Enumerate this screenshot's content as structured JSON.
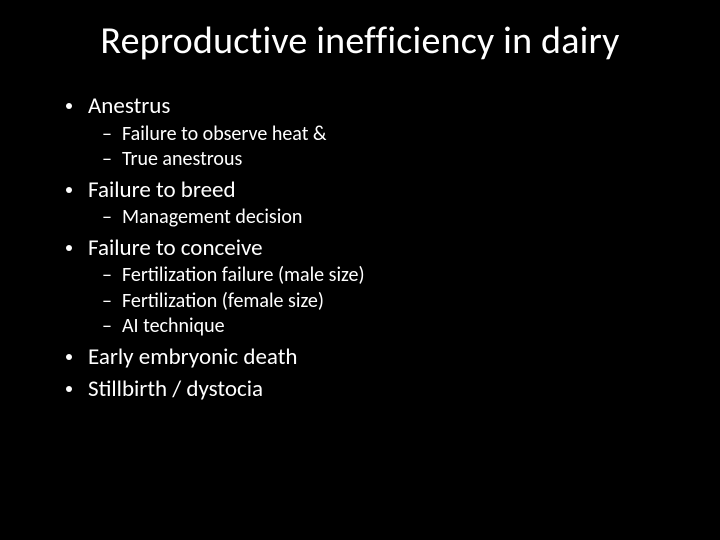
{
  "title": "Reproductive inefficiency in dairy",
  "items": [
    {
      "text": "Anestrus",
      "sub": [
        {
          "text": "Failure to observe heat &"
        },
        {
          "text": "True anestrous"
        }
      ]
    },
    {
      "text": "Failure to breed",
      "sub": [
        {
          "text": "Management decision"
        }
      ]
    },
    {
      "text": "Failure to conceive",
      "sub": [
        {
          "text": "Fertilization failure (male size)"
        },
        {
          "text": "Fertilization (female size)"
        },
        {
          "text": "AI technique"
        }
      ]
    },
    {
      "text": "Early embryonic death",
      "sub": []
    },
    {
      "text": "Stillbirth / dystocia",
      "sub": []
    }
  ],
  "colors": {
    "background": "#000000",
    "text": "#ffffff"
  },
  "typography": {
    "title_fontsize": 38,
    "l1_fontsize": 23,
    "l2_fontsize": 20,
    "font_family": "Calibri"
  },
  "dash": "–"
}
